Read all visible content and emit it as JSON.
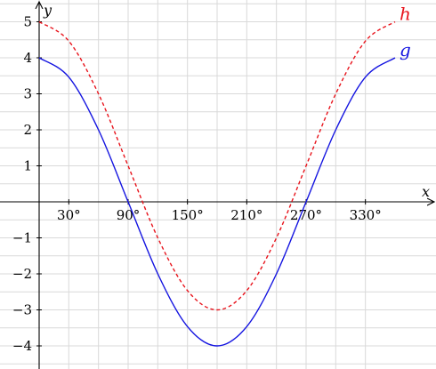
{
  "chart_data": {
    "type": "line",
    "xlabel": "x",
    "ylabel": "y",
    "xlim": [
      -8,
      310
    ],
    "ylim": [
      -4.6,
      5.4
    ],
    "grid": true,
    "x_ticks": [
      30,
      90,
      150,
      210,
      270,
      330
    ],
    "x_tick_labels": [
      "30°",
      "90°",
      "150°",
      "210°",
      "270°",
      "330°"
    ],
    "x_gridlines": [
      0,
      30,
      60,
      90,
      120,
      150,
      180,
      210,
      240,
      270,
      300,
      330
    ],
    "y_ticks": [
      5,
      4,
      3,
      2,
      1,
      -1,
      -2,
      -3,
      -4
    ],
    "y_tick_labels": [
      "5",
      "4",
      "3",
      "2",
      "1",
      "−1",
      "−2",
      "−3",
      "−4"
    ],
    "series": [
      {
        "name": "h",
        "color": "#e8141c",
        "dash": "dashed",
        "x": [
          0,
          30,
          60,
          90,
          120,
          150,
          180,
          210,
          240,
          270,
          300,
          330,
          360
        ],
        "y": [
          5,
          4.464,
          3,
          1,
          -1,
          -2.464,
          -3,
          -2.464,
          -1,
          1,
          3,
          4.464,
          5
        ]
      },
      {
        "name": "g",
        "color": "#1414e0",
        "dash": "solid",
        "x": [
          0,
          30,
          60,
          90,
          120,
          150,
          180,
          210,
          240,
          270,
          300,
          330,
          360
        ],
        "y": [
          4,
          3.464,
          2,
          0,
          -2,
          -3.464,
          -4,
          -3.464,
          -2,
          0,
          2,
          3.464,
          4
        ]
      }
    ]
  }
}
